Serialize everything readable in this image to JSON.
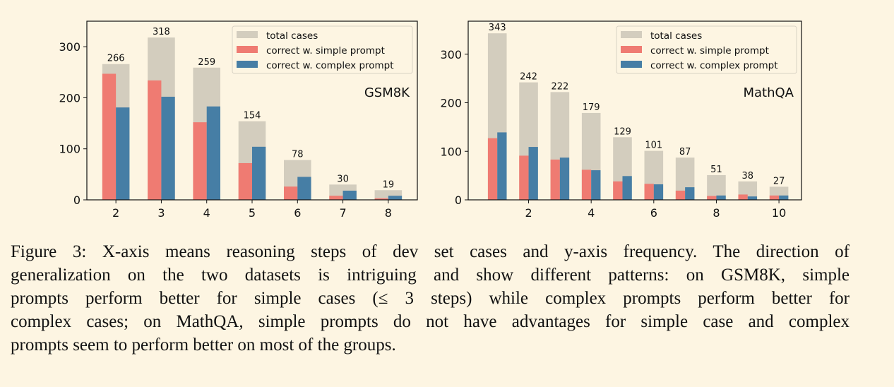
{
  "colors": {
    "total": "#d3cdbe",
    "simple": "#ef7b72",
    "complex": "#467ea5",
    "background": "#fdf5e2"
  },
  "chart_data": [
    {
      "type": "bar",
      "annotation": "GSM8K",
      "categories": [
        2,
        3,
        4,
        5,
        6,
        7,
        8
      ],
      "xticks": [
        "2",
        "3",
        "4",
        "5",
        "6",
        "7",
        "8"
      ],
      "yticks": [
        "0",
        "100",
        "200",
        "300"
      ],
      "ylim": [
        0,
        350
      ],
      "xlim": [
        1.36,
        8.64
      ],
      "grid": false,
      "legend_position": "top-right",
      "series": [
        {
          "name": "total cases",
          "values": [
            266,
            318,
            259,
            154,
            78,
            30,
            19
          ],
          "labels": [
            "266",
            "318",
            "259",
            "154",
            "78",
            "30",
            "19"
          ]
        },
        {
          "name": "correct w. simple prompt",
          "values": [
            247,
            234,
            152,
            72,
            26,
            8,
            3
          ]
        },
        {
          "name": "correct w. complex prompt",
          "values": [
            181,
            202,
            183,
            104,
            45,
            18,
            8
          ]
        }
      ]
    },
    {
      "type": "bar",
      "annotation": "MathQA",
      "categories": [
        1,
        2,
        3,
        4,
        5,
        6,
        7,
        8,
        9,
        10
      ],
      "xticks": [
        "2",
        "4",
        "6",
        "8",
        "10"
      ],
      "yticks": [
        "0",
        "100",
        "200",
        "300"
      ],
      "ylim": [
        0,
        368
      ],
      "xlim": [
        0.07,
        10.72
      ],
      "grid": false,
      "legend_position": "top-right",
      "series": [
        {
          "name": "total cases",
          "values": [
            343,
            242,
            222,
            179,
            129,
            101,
            87,
            51,
            38,
            27
          ],
          "labels": [
            "343",
            "242",
            "222",
            "179",
            "129",
            "101",
            "87",
            "51",
            "38",
            "27"
          ]
        },
        {
          "name": "correct w. simple prompt",
          "values": [
            127,
            91,
            83,
            62,
            38,
            33,
            19,
            8,
            11,
            9
          ]
        },
        {
          "name": "correct w. complex prompt",
          "values": [
            139,
            109,
            87,
            61,
            49,
            32,
            26,
            9,
            7,
            9
          ]
        }
      ]
    }
  ],
  "caption": {
    "lines": [
      "Figure 3: X-axis means reasoning steps of dev set cases and y-axis frequency. The direction of",
      "generalization on the two datasets is intriguing and show different patterns: on GSM8K, simple",
      "prompts perform better for simple cases (≤ 3 steps) while complex prompts perform better for",
      "complex cases; on MathQA, simple prompts do not have advantages for simple case and complex",
      "prompts seem to perform better on most of the groups."
    ]
  }
}
